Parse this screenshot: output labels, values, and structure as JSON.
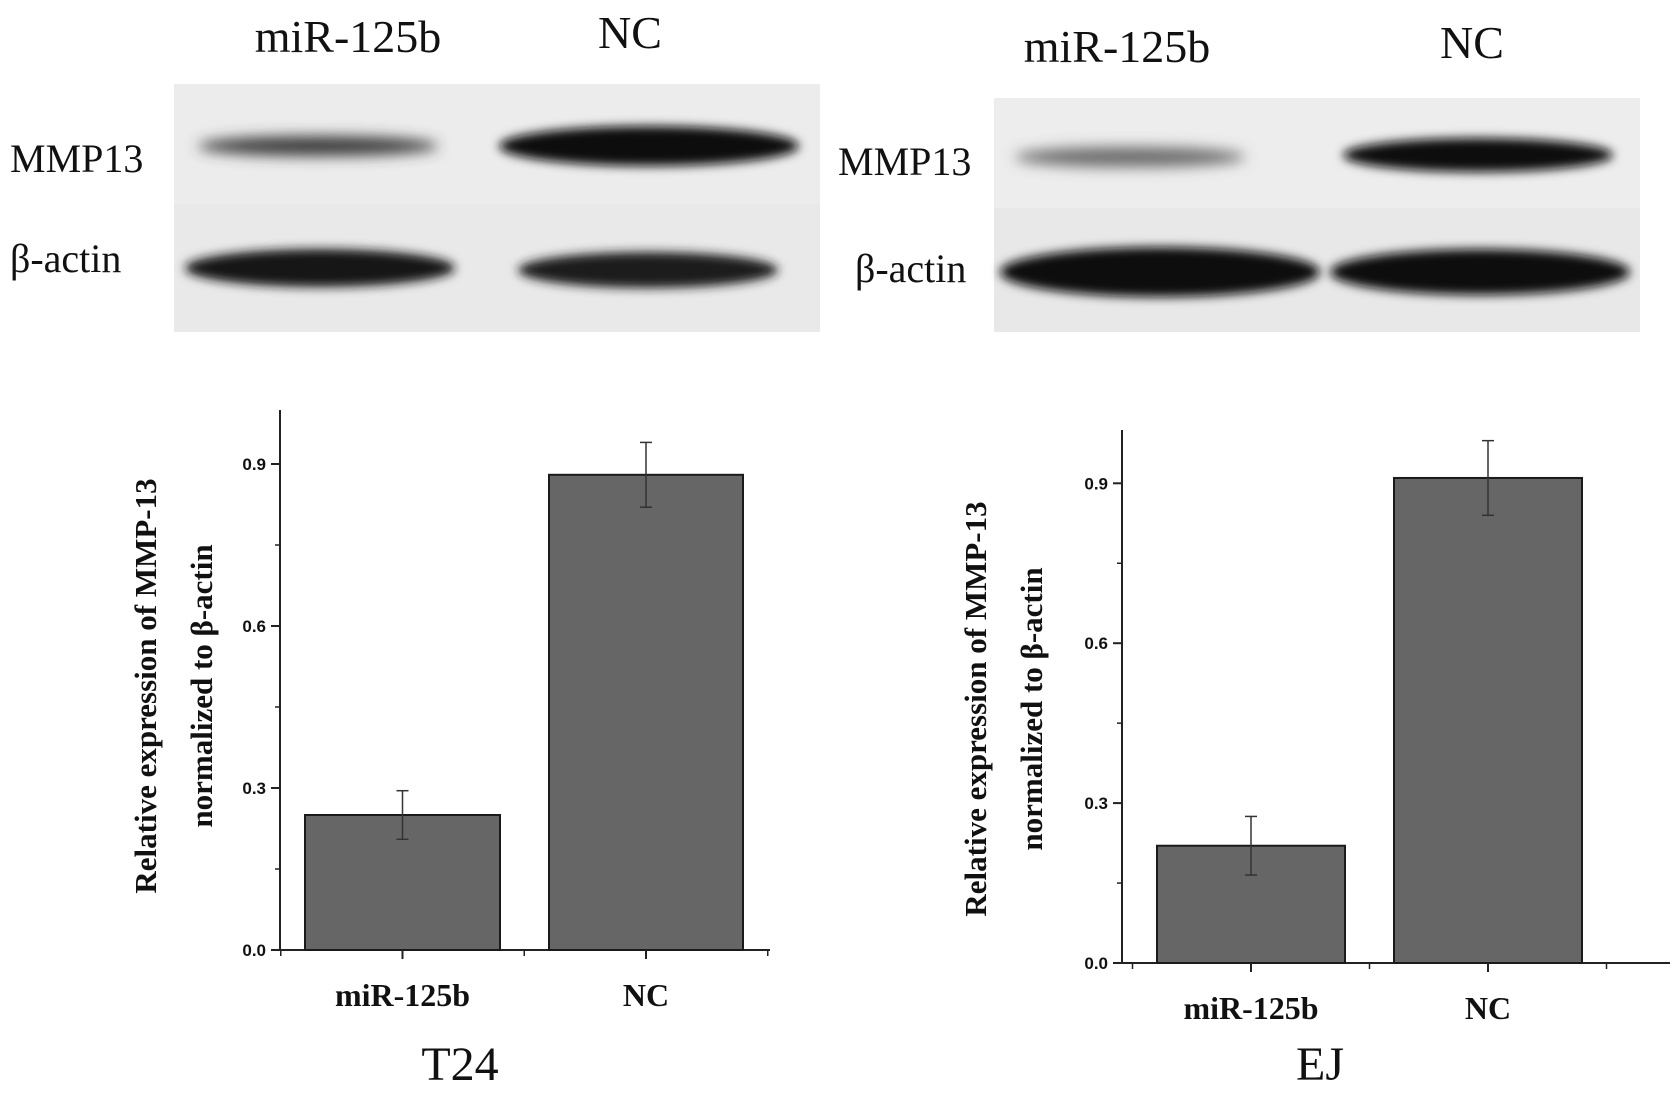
{
  "panels": [
    {
      "cell_line": "T24",
      "lanes": [
        "miR-125b",
        "NC"
      ],
      "bands": [
        "MMP13",
        "β-actin"
      ]
    },
    {
      "cell_line": "EJ",
      "lanes": [
        "miR-125b",
        "NC"
      ],
      "bands": [
        "MMP13",
        "β-actin"
      ]
    }
  ],
  "chart_data": [
    {
      "type": "bar",
      "categories": [
        "miR-125b",
        "NC"
      ],
      "values": [
        0.25,
        0.88
      ],
      "error": [
        0.045,
        0.06
      ],
      "title": "T24",
      "ylabel_lines": [
        "Relative expression of MMP-13",
        "normalized to β-actin"
      ],
      "ylim": [
        0,
        1.0
      ],
      "yticks": [
        0.0,
        0.3,
        0.6,
        0.9
      ],
      "ytick_labels": [
        "0.0",
        "0.3",
        "0.6",
        "0.9"
      ],
      "bar_color": "#666666",
      "grid": false
    },
    {
      "type": "bar",
      "categories": [
        "miR-125b",
        "NC"
      ],
      "values": [
        0.22,
        0.91
      ],
      "error": [
        0.055,
        0.07
      ],
      "title": "EJ",
      "ylabel_lines": [
        "Relative expression of MMP-13",
        "normalized to β-actin"
      ],
      "ylim": [
        0,
        1.0
      ],
      "yticks": [
        0.0,
        0.3,
        0.6,
        0.9
      ],
      "ytick_labels": [
        "0.0",
        "0.3",
        "0.6",
        "0.9"
      ],
      "bar_color": "#666666",
      "grid": false
    }
  ]
}
